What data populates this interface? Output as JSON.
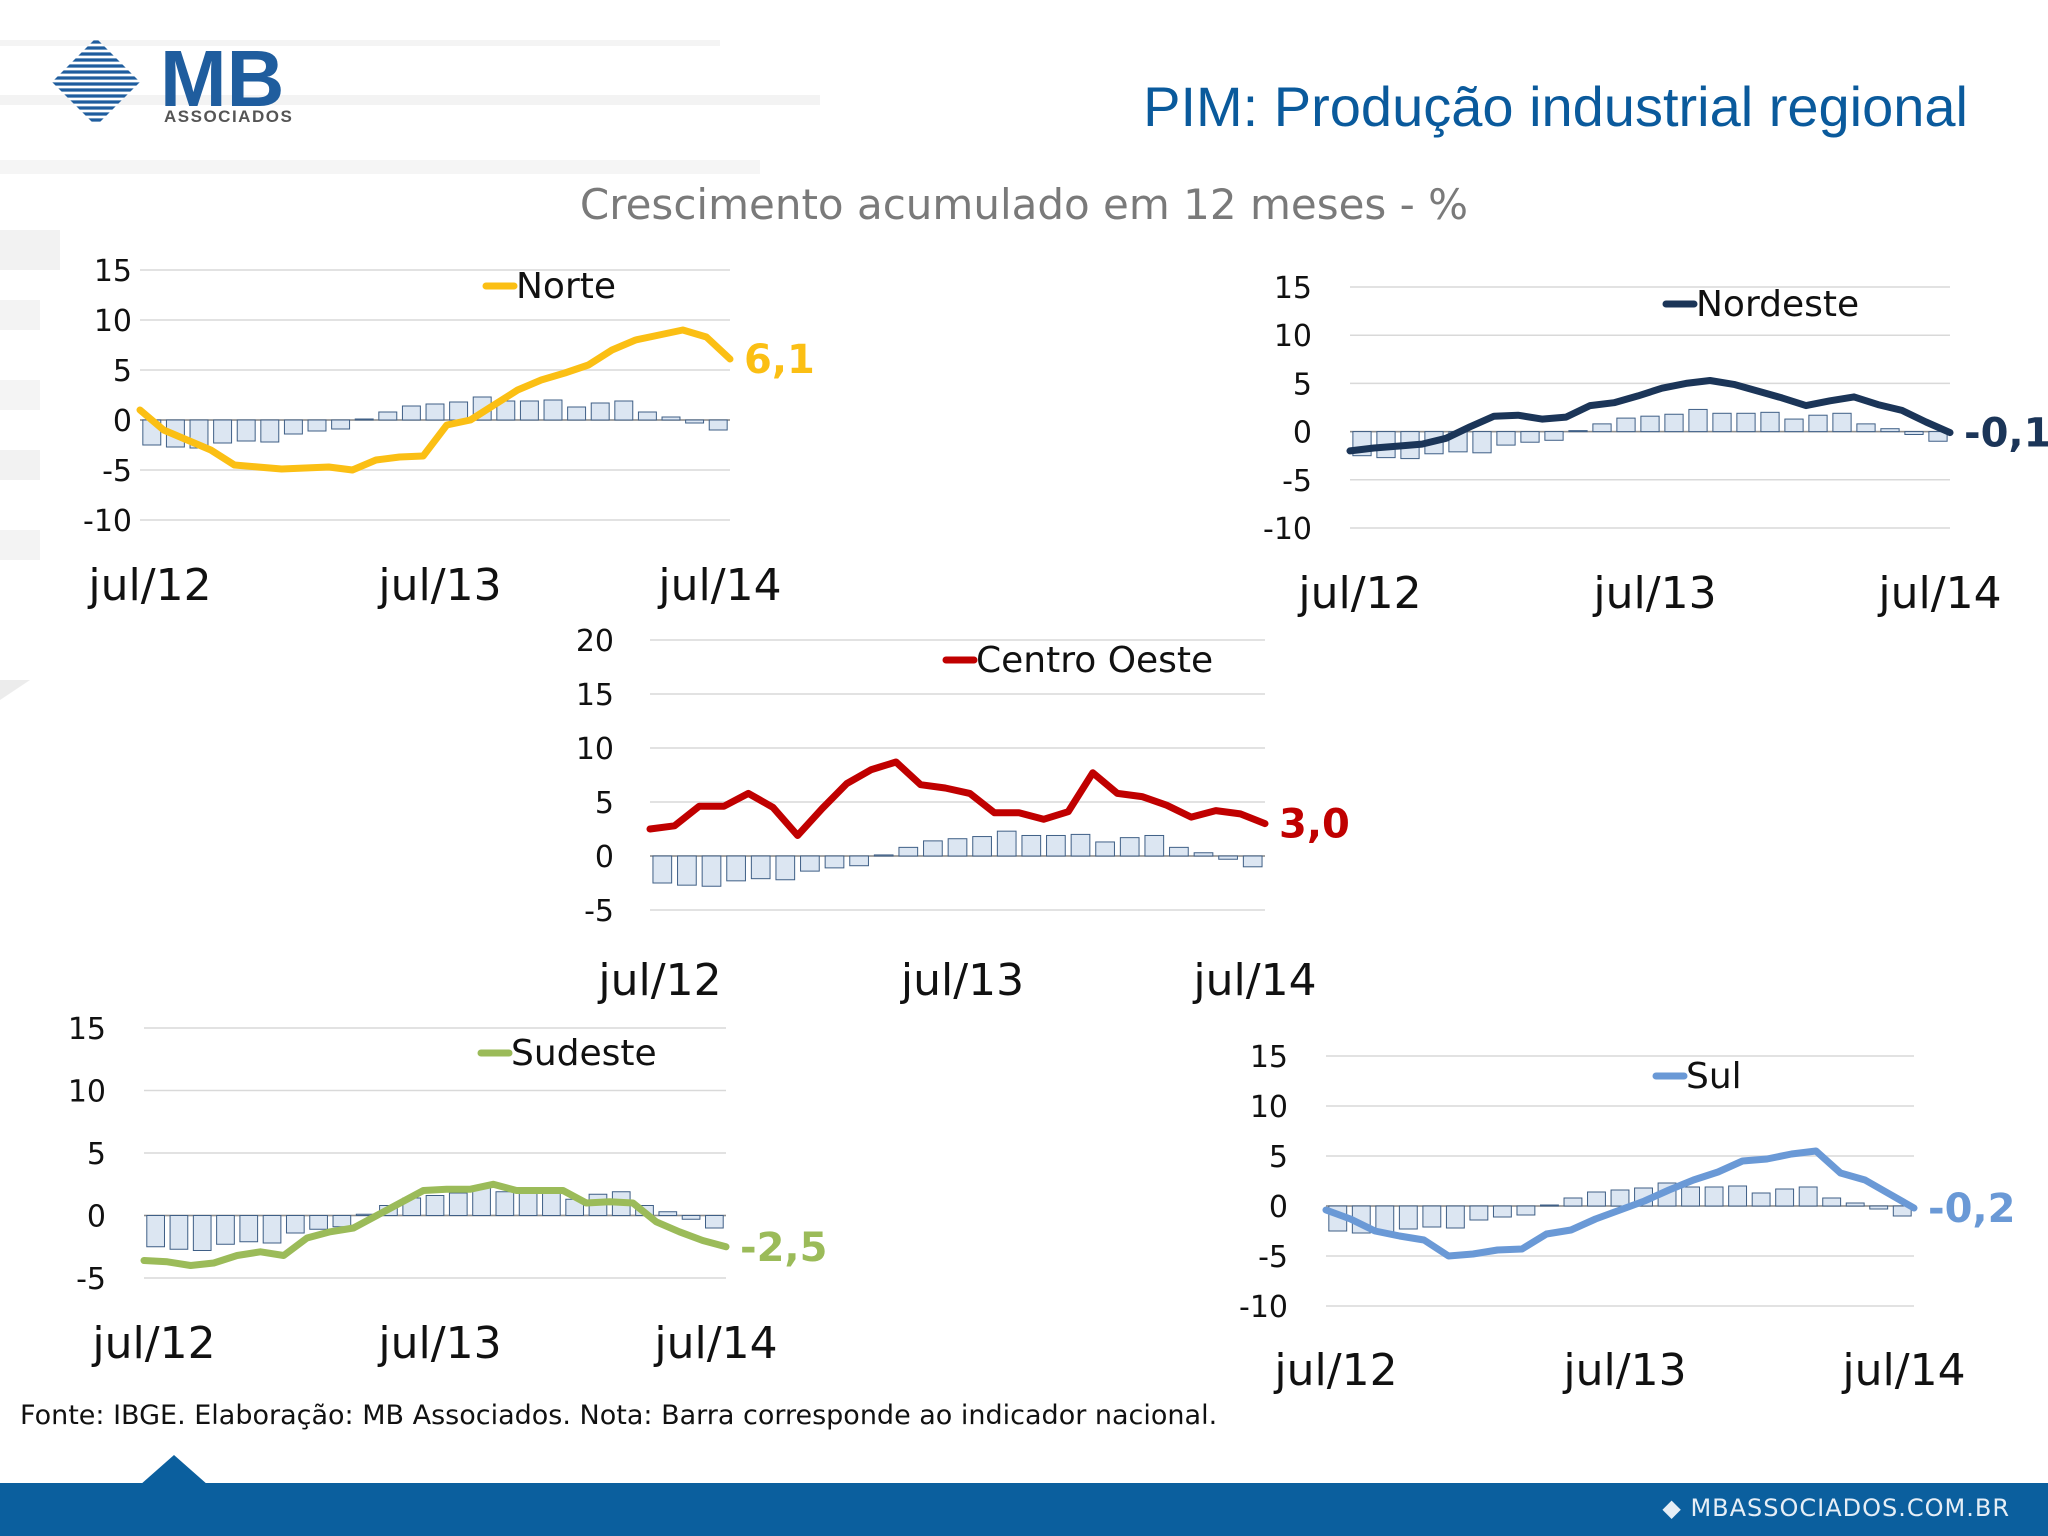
{
  "header": {
    "logo_text": "MB",
    "logo_subtext": "ASSOCIADOS",
    "title": "PIM: Produção industrial regional",
    "subtitle": "Crescimento acumulado em 12 meses - %"
  },
  "footnote": "Fonte: IBGE. Elaboração: MB Associados. Nota: Barra corresponde ao indicador nacional.",
  "footer": {
    "site": "MBASSOCIADOS.COM.BR"
  },
  "colors": {
    "brand_blue": "#0b5f9e",
    "bar_fill": "#dce6f2",
    "bar_stroke": "#3f5f86"
  },
  "chart_data": [
    {
      "type": "line",
      "series": [
        {
          "name": "Norte",
          "color": "#fbbf14",
          "values": [
            1,
            -1,
            -2,
            -3,
            -4.5,
            -4.7,
            -4.9,
            -4.8,
            -4.7,
            -5,
            -4,
            -3.7,
            -3.6,
            -0.5,
            0,
            1.5,
            3,
            4,
            4.7,
            5.5,
            7,
            8,
            8.5,
            9,
            8.3,
            6.1
          ]
        },
        {
          "name": "nacional",
          "color": "#dce6f2",
          "values": [
            -2.5,
            -2.7,
            -2.8,
            -2.3,
            -2.1,
            -2.2,
            -1.4,
            -1.1,
            -0.9,
            0.1,
            0.8,
            1.4,
            1.6,
            1.8,
            2.3,
            1.9,
            1.9,
            2,
            1.3,
            1.7,
            1.9,
            0.8,
            0.3,
            -0.3,
            -1
          ]
        }
      ],
      "categories_labels": [
        "jul/12",
        "jul/13",
        "jul/14"
      ],
      "data_label": "6,1",
      "yticks": [
        "15",
        "10",
        "5",
        "0",
        "-5",
        "-10"
      ],
      "ylim": [
        -10,
        15
      ]
    },
    {
      "type": "line",
      "series": [
        {
          "name": "Nordeste",
          "color": "#1b3558",
          "values": [
            -2,
            -1.7,
            -1.5,
            -1.3,
            -0.7,
            0.5,
            1.6,
            1.7,
            1.3,
            1.5,
            2.7,
            3,
            3.7,
            4.5,
            5,
            5.3,
            4.9,
            4.2,
            3.5,
            2.7,
            3.2,
            3.6,
            2.8,
            2.2,
            1,
            -0.1
          ]
        },
        {
          "name": "nacional",
          "color": "#dce6f2",
          "values": [
            -2.5,
            -2.7,
            -2.8,
            -2.3,
            -2.1,
            -2.2,
            -1.4,
            -1.1,
            -0.9,
            0.1,
            0.8,
            1.4,
            1.6,
            1.8,
            2.3,
            1.9,
            1.9,
            2,
            1.3,
            1.7,
            1.9,
            0.8,
            0.3,
            -0.3,
            -1
          ]
        }
      ],
      "categories_labels": [
        "jul/12",
        "jul/13",
        "jul/14"
      ],
      "data_label": "-0,1",
      "yticks": [
        "15",
        "10",
        "5",
        "0",
        "-5",
        "-10"
      ],
      "ylim": [
        -10,
        15
      ]
    },
    {
      "type": "line",
      "series": [
        {
          "name": "Centro Oeste",
          "color": "#c00000",
          "values": [
            2.5,
            2.8,
            4.6,
            4.6,
            5.8,
            4.5,
            1.9,
            4.4,
            6.7,
            8,
            8.7,
            6.6,
            6.3,
            5.8,
            4,
            4,
            3.4,
            4.1,
            7.7,
            5.8,
            5.5,
            4.7,
            3.6,
            4.2,
            3.9,
            3
          ]
        },
        {
          "name": "nacional",
          "color": "#dce6f2",
          "values": [
            -2.5,
            -2.7,
            -2.8,
            -2.3,
            -2.1,
            -2.2,
            -1.4,
            -1.1,
            -0.9,
            0.1,
            0.8,
            1.4,
            1.6,
            1.8,
            2.3,
            1.9,
            1.9,
            2,
            1.3,
            1.7,
            1.9,
            0.8,
            0.3,
            -0.3,
            -1
          ]
        }
      ],
      "categories_labels": [
        "jul/12",
        "jul/13",
        "jul/14"
      ],
      "data_label": "3,0",
      "yticks": [
        "20",
        "15",
        "10",
        "5",
        "0",
        "-5"
      ],
      "ylim": [
        -5,
        20
      ]
    },
    {
      "type": "line",
      "series": [
        {
          "name": "Sudeste",
          "color": "#9bbb59",
          "values": [
            -3.6,
            -3.7,
            -4,
            -3.8,
            -3.2,
            -2.9,
            -3.2,
            -1.8,
            -1.3,
            -1,
            0,
            1,
            2,
            2.1,
            2.1,
            2.5,
            2,
            2,
            2,
            1,
            1.1,
            1,
            -0.5,
            -1.3,
            -2,
            -2.5
          ]
        },
        {
          "name": "nacional",
          "color": "#dce6f2",
          "values": [
            -2.5,
            -2.7,
            -2.8,
            -2.3,
            -2.1,
            -2.2,
            -1.4,
            -1.1,
            -0.9,
            0.1,
            0.8,
            1.4,
            1.6,
            1.8,
            2.3,
            1.9,
            1.9,
            2,
            1.3,
            1.7,
            1.9,
            0.8,
            0.3,
            -0.3,
            -1
          ]
        }
      ],
      "categories_labels": [
        "jul/12",
        "jul/13",
        "jul/14"
      ],
      "data_label": "-2,5",
      "yticks": [
        "15",
        "10",
        "5",
        "0",
        "-5"
      ],
      "ylim": [
        -5,
        15
      ]
    },
    {
      "type": "line",
      "series": [
        {
          "name": "Sul",
          "color": "#6a99d6",
          "values": [
            -0.4,
            -1.3,
            -2.5,
            -3,
            -3.4,
            -5,
            -4.8,
            -4.4,
            -4.3,
            -2.8,
            -2.4,
            -1.3,
            -0.4,
            0.5,
            1.6,
            2.6,
            3.4,
            4.5,
            4.7,
            5.2,
            5.5,
            3.3,
            2.6,
            1.2,
            -0.2
          ]
        },
        {
          "name": "nacional",
          "color": "#dce6f2",
          "values": [
            -2.5,
            -2.7,
            -2.8,
            -2.3,
            -2.1,
            -2.2,
            -1.4,
            -1.1,
            -0.9,
            0.1,
            0.8,
            1.4,
            1.6,
            1.8,
            2.3,
            1.9,
            1.9,
            2,
            1.3,
            1.7,
            1.9,
            0.8,
            0.3,
            -0.3,
            -1
          ]
        }
      ],
      "categories_labels": [
        "jul/12",
        "jul/13",
        "jul/14"
      ],
      "data_label": "-0,2",
      "yticks": [
        "15",
        "10",
        "5",
        "0",
        "-5",
        "-10"
      ],
      "ylim": [
        -10,
        15
      ]
    }
  ]
}
